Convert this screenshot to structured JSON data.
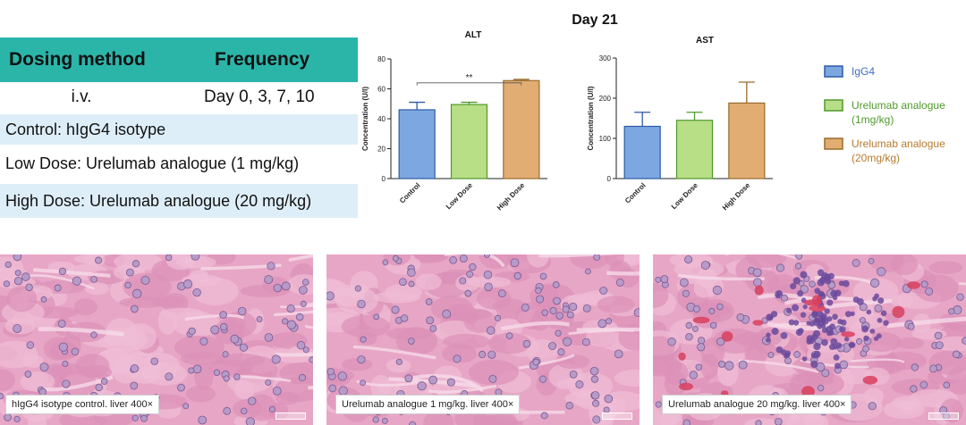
{
  "dosing_table": {
    "headers": [
      "Dosing method",
      "Frequency"
    ],
    "route": "i.v.",
    "frequency": "Day 0, 3, 7, 10",
    "groups": [
      "Control: hIgG4 isotype",
      "Low Dose: Urelumab analogue (1 mg/kg)",
      "High Dose: Urelumab analogue (20 mg/kg)"
    ]
  },
  "colors": {
    "header_teal": "#2bb5a9",
    "row_blue": "#deeef8",
    "igg4": "#7da7e0",
    "low": "#b8de86",
    "high": "#e1ad72"
  },
  "chart_data": [
    {
      "type": "bar",
      "title": "ALT",
      "ylabel": "Concentration (U/l)",
      "categories": [
        "Control",
        "Low Dose",
        "High Dose"
      ],
      "values": [
        46,
        49.5,
        65.5
      ],
      "errors": [
        5,
        1.5,
        0.8
      ],
      "ylim": [
        0,
        80
      ],
      "yticks": [
        0,
        20,
        40,
        60,
        80
      ],
      "annotation": "**"
    },
    {
      "type": "bar",
      "title": "AST",
      "ylabel": "Concentration (U/l)",
      "categories": [
        "Control",
        "Low Dose",
        "High Dose"
      ],
      "values": [
        130,
        145,
        188
      ],
      "errors": [
        35,
        20,
        52
      ],
      "ylim": [
        0,
        300
      ],
      "yticks": [
        0,
        100,
        200,
        300
      ]
    }
  ],
  "charts_header": "Day 21",
  "legend": [
    {
      "label": "IgG4",
      "color": "#7da7e0",
      "border": "#2e5aa8",
      "text_color": "#3c6fc2"
    },
    {
      "label": "Urelumab analogue\n(1mg/kg)",
      "color": "#b8de86",
      "border": "#4f9a2a",
      "text_color": "#4f9a2a"
    },
    {
      "label": "Urelumab analogue\n(20mg/kg)",
      "color": "#e1ad72",
      "border": "#9a6a2c",
      "text_color": "#b57a2e"
    }
  ],
  "histology": [
    {
      "caption": "hIgG4 isotype control. liver 400×"
    },
    {
      "caption": "Urelumab analogue 1 mg/kg. liver 400×"
    },
    {
      "caption": "Urelumab analogue 20 mg/kg. liver 400×"
    }
  ]
}
